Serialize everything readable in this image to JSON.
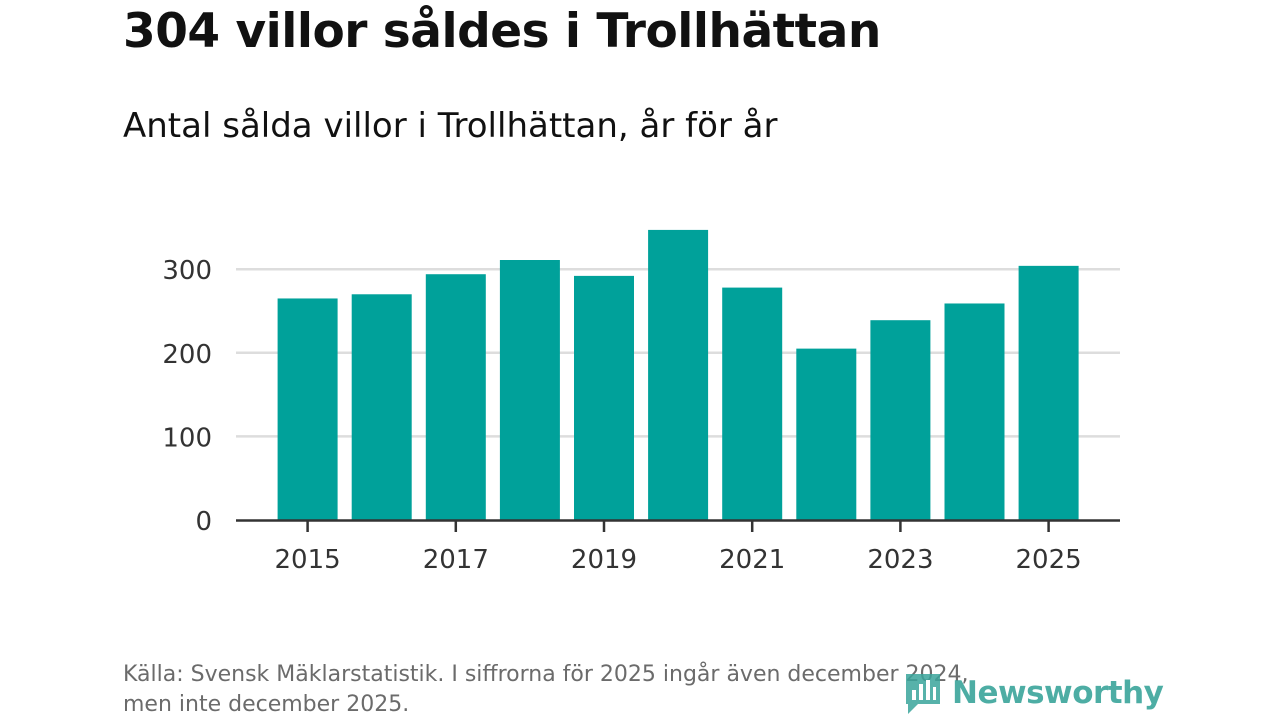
{
  "title": "304 villor såldes i Trollhättan",
  "subtitle": "Antal sålda villor i Trollhättan, år för år",
  "footnote": {
    "line1": "Källa: Svensk Mäklarstatistik. I siffrorna för 2025 ingår även december 2024,",
    "line2": "men inte december 2025."
  },
  "logo": {
    "text": "Newsworthy",
    "icon": "bar-chart-icon"
  },
  "colors": {
    "bar": "#00a19a",
    "grid": "#dddddd",
    "axis": "#333333"
  },
  "chart_data": {
    "type": "bar",
    "title": "304 villor såldes i Trollhättan",
    "subtitle": "Antal sålda villor i Trollhättan, år för år",
    "xlabel": "",
    "ylabel": "",
    "categories": [
      "2015",
      "2016",
      "2017",
      "2018",
      "2019",
      "2020",
      "2021",
      "2022",
      "2023",
      "2024",
      "2025"
    ],
    "values": [
      265,
      270,
      294,
      311,
      292,
      347,
      278,
      205,
      239,
      259,
      304
    ],
    "x_tick_labels": [
      "2015",
      "2017",
      "2019",
      "2021",
      "2023",
      "2025"
    ],
    "y_ticks": [
      0,
      100,
      200,
      300
    ],
    "ylim": [
      0,
      350
    ],
    "grid": true
  }
}
